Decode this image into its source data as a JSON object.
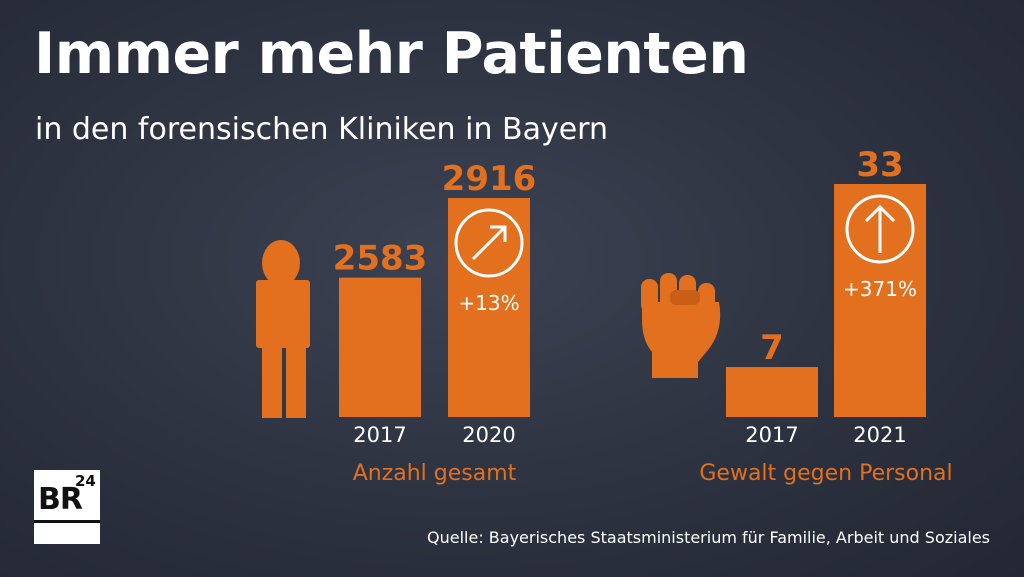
{
  "header": {
    "title": "Immer mehr Patienten",
    "subtitle": "in den forensischen Kliniken in Bayern"
  },
  "colors": {
    "accent": "#e2701e",
    "background": "#2d3240",
    "text": "#ffffff"
  },
  "icons": {
    "group1": "person-icon",
    "group2": "fist-icon",
    "change": "arrow-circle-icon"
  },
  "chart_data": [
    {
      "type": "bar",
      "title": "Anzahl gesamt",
      "categories": [
        "2017",
        "2020"
      ],
      "values": [
        2583,
        2916
      ],
      "value_labels": [
        "2583",
        "2916"
      ],
      "change_label": "+13%",
      "ylim": [
        0,
        2916
      ]
    },
    {
      "type": "bar",
      "title": "Gewalt gegen Personal",
      "categories": [
        "2017",
        "2021"
      ],
      "values": [
        7,
        33
      ],
      "value_labels": [
        "7",
        "33"
      ],
      "change_label": "+371%",
      "ylim": [
        0,
        33
      ]
    }
  ],
  "footer": {
    "source": "Quelle: Bayerisches Staatsministerium für Familie, Arbeit und Soziales",
    "logo_text": "BR",
    "logo_number": "24"
  }
}
